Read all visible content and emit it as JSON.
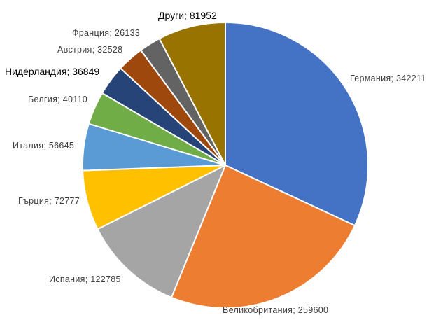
{
  "chart_data": {
    "type": "pie",
    "title": "",
    "legend": "none",
    "slices": [
      {
        "category": "Германия",
        "value": 342211,
        "color": "#4472C4",
        "label": "Германия; 342211"
      },
      {
        "category": "Великобритания",
        "value": 259600,
        "color": "#ED7D31",
        "label": "Великобритания; 259600"
      },
      {
        "category": "Испания",
        "value": 122785,
        "color": "#A5A5A5",
        "label": "Испания; 122785"
      },
      {
        "category": "Гърция",
        "value": 72777,
        "color": "#FFC000",
        "label": "Гърция; 72777"
      },
      {
        "category": "Италия",
        "value": 56645,
        "color": "#5B9BD5",
        "label": "Италия; 56645"
      },
      {
        "category": "Белгия",
        "value": 40110,
        "color": "#70AD47",
        "label": "Белгия; 40110"
      },
      {
        "category": "Нидерландия",
        "value": 36849,
        "color": "#264478",
        "label": "Нидерландия; 36849"
      },
      {
        "category": "Австрия",
        "value": 32528,
        "color": "#9E480E",
        "label": "Австрия; 32528"
      },
      {
        "category": "Франция",
        "value": 26133,
        "color": "#636363",
        "label": "Франция; 26133"
      },
      {
        "category": "Други",
        "value": 81952,
        "color": "#997300",
        "label": "Други; 81952"
      }
    ]
  }
}
